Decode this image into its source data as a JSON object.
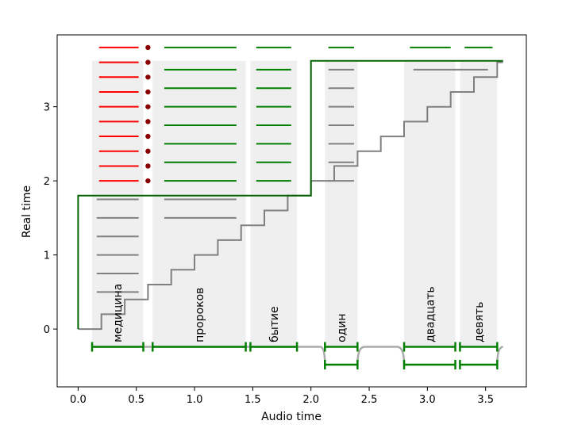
{
  "chart_data": {
    "type": "line",
    "title": "",
    "xlabel": "Audio time",
    "ylabel": "Real time",
    "xlim": [
      -0.18,
      3.85
    ],
    "ylim": [
      -0.78,
      3.97
    ],
    "xticks": [
      0.0,
      0.5,
      1.0,
      1.5,
      2.0,
      2.5,
      3.0,
      3.5
    ],
    "xtick_labels": [
      "0.0",
      "0.5",
      "1.0",
      "1.5",
      "2.0",
      "2.5",
      "3.0",
      "3.5"
    ],
    "yticks": [
      0,
      1,
      2,
      3
    ],
    "ytick_labels": [
      "0",
      "1",
      "2",
      "3"
    ],
    "colors": {
      "green": "#007f00",
      "dark_green": "#006400",
      "gray": "#808080",
      "light_gray": "#aaaaaa",
      "red": "#ff0000",
      "dark_red": "#8b0000",
      "band": "#efefef"
    },
    "words": [
      {
        "label": "медицина",
        "start": 0.12,
        "end": 0.56
      },
      {
        "label": "пророков",
        "start": 0.64,
        "end": 1.44
      },
      {
        "label": "бытие",
        "start": 1.48,
        "end": 1.88
      },
      {
        "label": "один",
        "start": 2.12,
        "end": 2.4
      },
      {
        "label": "двадцать",
        "start": 2.8,
        "end": 3.24
      },
      {
        "label": "девять",
        "start": 3.28,
        "end": 3.6
      }
    ],
    "band_top": 3.62,
    "staircase": {
      "x": [
        0.0,
        0.2,
        0.2,
        0.4,
        0.4,
        0.6,
        0.6,
        0.8,
        0.8,
        1.0,
        1.0,
        1.2,
        1.2,
        1.4,
        1.4,
        1.6,
        1.6,
        1.8,
        1.8,
        2.0,
        2.0,
        2.2,
        2.2,
        2.4,
        2.4,
        2.6,
        2.6,
        2.8,
        2.8,
        3.0,
        3.0,
        3.2,
        3.2,
        3.4,
        3.4,
        3.6,
        3.6,
        3.65
      ],
      "y": [
        0.0,
        0.0,
        0.2,
        0.2,
        0.4,
        0.4,
        0.6,
        0.6,
        0.8,
        0.8,
        1.0,
        1.0,
        1.2,
        1.2,
        1.4,
        1.4,
        1.6,
        1.6,
        1.8,
        1.8,
        2.0,
        2.0,
        2.2,
        2.2,
        2.4,
        2.4,
        2.6,
        2.6,
        2.8,
        2.8,
        3.0,
        3.0,
        3.2,
        3.2,
        3.4,
        3.4,
        3.6,
        3.6
      ]
    },
    "green_step": {
      "x": [
        0.0,
        0.0,
        2.0,
        2.0,
        3.65
      ],
      "y": [
        0.0,
        1.8,
        1.8,
        3.62,
        3.62
      ]
    },
    "red_rows": [
      2.0,
      2.2,
      2.4,
      2.6,
      2.8,
      3.0,
      3.2,
      3.4,
      3.6,
      3.8
    ],
    "gray_rows_word1": [
      0.5,
      0.75,
      1.0,
      1.25,
      1.5,
      1.75
    ],
    "gray_rows_word2": [
      1.5,
      1.75
    ],
    "green_rows_word2": [
      2.0,
      2.25,
      2.5,
      2.75,
      3.0,
      3.25,
      3.5,
      3.8
    ],
    "green_rows_word3": [
      2.0,
      2.25,
      2.5,
      2.75,
      3.0,
      3.25,
      3.5,
      3.8
    ],
    "gray_rows_word4": [
      2.0,
      2.25,
      2.5,
      2.75,
      3.0,
      3.25,
      3.5
    ],
    "green_rows_word4": [
      3.8
    ],
    "green_rows_word5": [
      3.8
    ],
    "green_rows_word6": [
      3.8
    ],
    "gray_row_word56": {
      "start": 2.88,
      "end": 3.52,
      "y": 3.5
    },
    "red_segment": {
      "start": 0.18,
      "end": 0.32
    },
    "dot_x": 0.6,
    "lower_track_y": -0.24,
    "lower_track_y2": -0.48
  }
}
